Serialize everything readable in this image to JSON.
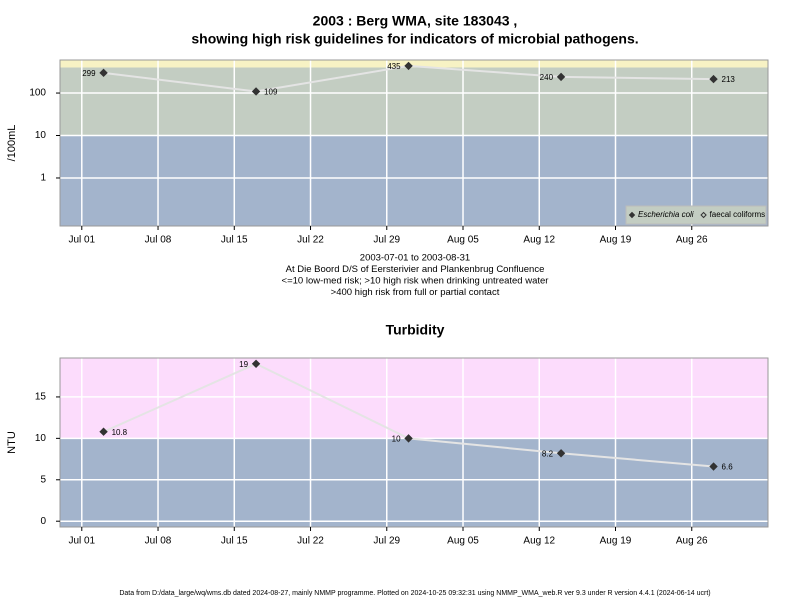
{
  "chart_data": [
    {
      "type": "line",
      "title": [
        "2003 : Berg WMA, site 183043 ,",
        "showing high risk guidelines for indicators of microbial pathogens."
      ],
      "y_label": "/100mL",
      "notes": [
        "2003-07-01 to 2003-08-31",
        "At Die Boord D/S of Eersterivier and Plankenbrug Confluence",
        "<=10 low-med risk; >10 high risk when drinking untreated water",
        ">400 high risk from full or partial contact"
      ],
      "x": [
        "07-03",
        "07-17",
        "07-31",
        "08-14",
        "08-28"
      ],
      "xlim": [
        "06-29",
        "09-02"
      ],
      "xticks": [
        {
          "value": "07-01",
          "label": "Jul 01"
        },
        {
          "value": "07-08",
          "label": "Jul 08"
        },
        {
          "value": "07-15",
          "label": "Jul 15"
        },
        {
          "value": "07-22",
          "label": "Jul 22"
        },
        {
          "value": "07-29",
          "label": "Jul 29"
        },
        {
          "value": "08-05",
          "label": "Aug 05"
        },
        {
          "value": "08-12",
          "label": "Aug 12"
        },
        {
          "value": "08-19",
          "label": "Aug 19"
        },
        {
          "value": "08-26",
          "label": "Aug 26"
        }
      ],
      "log_y": true,
      "ylim": [
        0.074,
        600
      ],
      "yticks": [
        1,
        10,
        100
      ],
      "bands": [
        {
          "max": 10,
          "color": "#a3b4cc"
        },
        {
          "min": 10,
          "max": 400,
          "color": "#c3cdc2"
        },
        {
          "min": 400,
          "color": "#f7f2c4"
        }
      ],
      "series": [
        {
          "name": "Escherichia coli",
          "color": "#333333",
          "marker": "filled",
          "values": [
            299,
            109,
            435,
            240,
            213
          ]
        },
        {
          "name": "faecal coliforms",
          "color": "#333333",
          "marker": "open",
          "values": [
            null,
            null,
            null,
            null,
            null
          ]
        }
      ],
      "legend": "bottom-right",
      "grid": true
    },
    {
      "type": "line",
      "title": [
        "Turbidity"
      ],
      "y_label": "NTU",
      "x": [
        "07-03",
        "07-17",
        "07-31",
        "08-14",
        "08-28"
      ],
      "xlim": [
        "06-29",
        "09-02"
      ],
      "xticks": [
        {
          "value": "07-01",
          "label": "Jul 01"
        },
        {
          "value": "07-08",
          "label": "Jul 08"
        },
        {
          "value": "07-15",
          "label": "Jul 15"
        },
        {
          "value": "07-22",
          "label": "Jul 22"
        },
        {
          "value": "07-29",
          "label": "Jul 29"
        },
        {
          "value": "08-05",
          "label": "Aug 05"
        },
        {
          "value": "08-12",
          "label": "Aug 12"
        },
        {
          "value": "08-19",
          "label": "Aug 19"
        },
        {
          "value": "08-26",
          "label": "Aug 26"
        }
      ],
      "log_y": false,
      "ylim": [
        -0.7,
        19.7
      ],
      "yticks": [
        0,
        5,
        10,
        15
      ],
      "bands": [
        {
          "max": 10,
          "color": "#a3b4cc"
        },
        {
          "min": 10,
          "color": "#fcdcfc"
        }
      ],
      "series": [
        {
          "name": "Turbidity",
          "color": "#333333",
          "marker": "filled",
          "values": [
            10.8,
            19,
            10,
            8.2,
            6.6
          ]
        }
      ],
      "legend": null,
      "grid": true
    }
  ],
  "footer": "Data from D:/data_large/wq/wms.db dated 2024-08-27, mainly NMMP programme. Plotted on 2024-10-25 09:32:31 using NMMP_WMA_web.R ver 9.3 under R version 4.4.1 (2024-06-14 ucrt)"
}
